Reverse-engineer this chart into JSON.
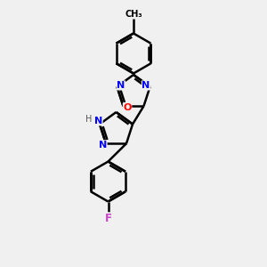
{
  "background_color": "#f0f0f0",
  "bond_color": "#000000",
  "bond_width": 1.8,
  "atom_colors": {
    "N": "#0000ff",
    "O": "#ff0000",
    "F": "#cc44cc",
    "C": "#000000",
    "H": "#555555"
  },
  "font_size": 8,
  "fig_width": 3.0,
  "fig_height": 3.0,
  "dpi": 100
}
